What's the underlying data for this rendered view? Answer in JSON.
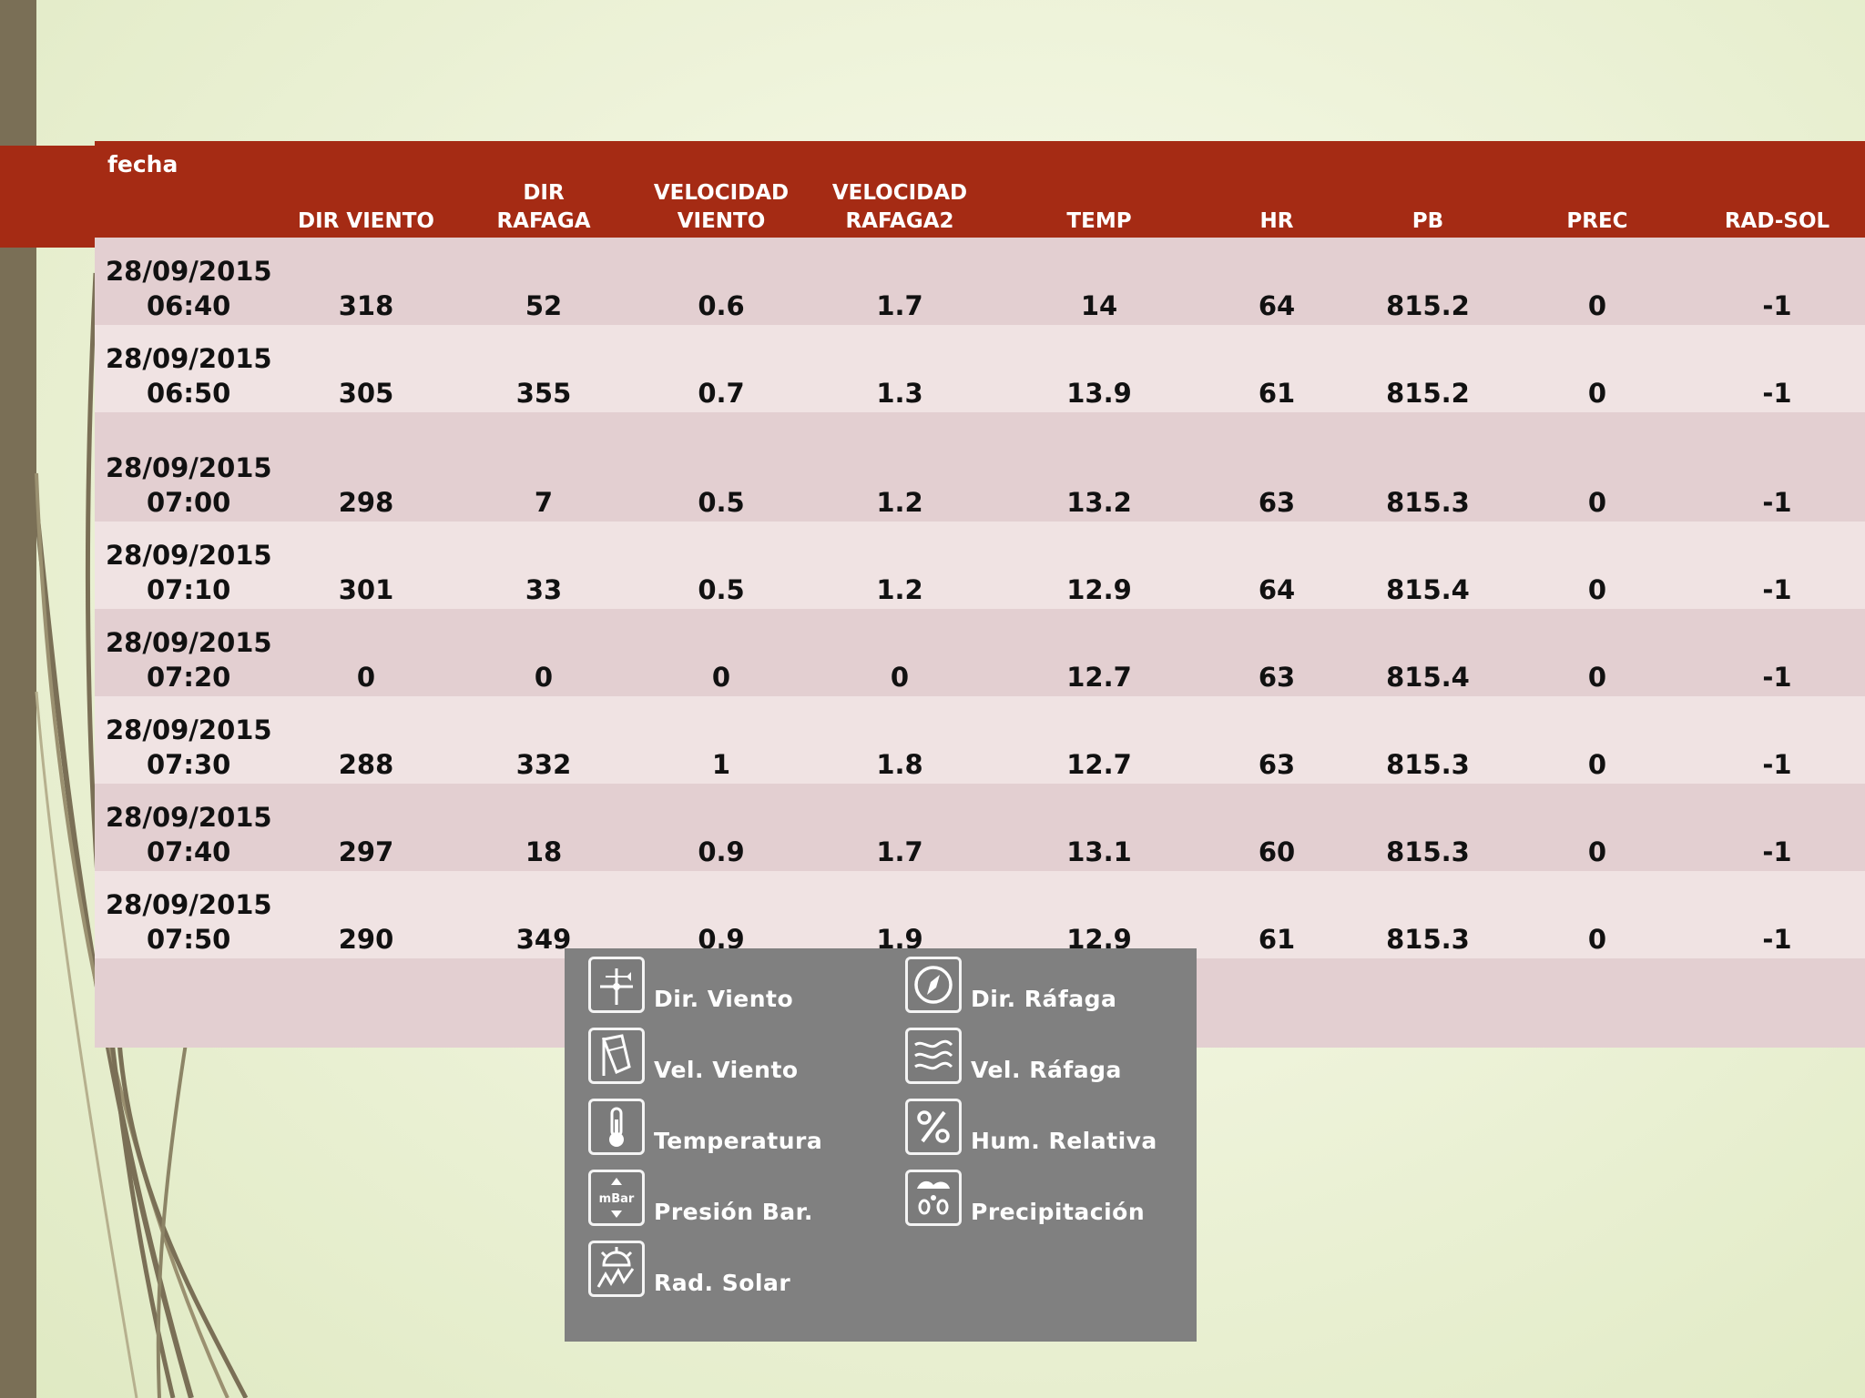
{
  "colors": {
    "header_red": "#a52b14",
    "row_dark": "#e3cfd1",
    "row_light": "#f0e3e3",
    "legend_bg": "#808080",
    "left_bar": "#7a6f56"
  },
  "table": {
    "headers": {
      "fecha": "fecha",
      "dir_viento": "DIR VIENTO",
      "dir_rafaga_1": "DIR",
      "dir_rafaga_2": "RAFAGA",
      "velocidad_viento_1": "VELOCIDAD",
      "velocidad_viento_2": "VIENTO",
      "velocidad_rafaga_1": "VELOCIDAD",
      "velocidad_rafaga_2": "RAFAGA2",
      "temp": "TEMP",
      "hr": "HR",
      "pb": "PB",
      "prec": "PREC",
      "rad_sol": "RAD-SOL"
    },
    "rows": [
      {
        "date": "28/09/2015",
        "time": "06:40",
        "dir_viento": "318",
        "dir_rafaga": "52",
        "vel_viento": "0.6",
        "vel_rafaga": "1.7",
        "temp": "14",
        "hr": "64",
        "pb": "815.2",
        "prec": "0",
        "rad_sol": "-1"
      },
      {
        "date": "28/09/2015",
        "time": "06:50",
        "dir_viento": "305",
        "dir_rafaga": "355",
        "vel_viento": "0.7",
        "vel_rafaga": "1.3",
        "temp": "13.9",
        "hr": "61",
        "pb": "815.2",
        "prec": "0",
        "rad_sol": "-1"
      },
      {
        "date": "28/09/2015",
        "time": "07:00",
        "dir_viento": "298",
        "dir_rafaga": "7",
        "vel_viento": "0.5",
        "vel_rafaga": "1.2",
        "temp": "13.2",
        "hr": "63",
        "pb": "815.3",
        "prec": "0",
        "rad_sol": "-1"
      },
      {
        "date": "28/09/2015",
        "time": "07:10",
        "dir_viento": "301",
        "dir_rafaga": "33",
        "vel_viento": "0.5",
        "vel_rafaga": "1.2",
        "temp": "12.9",
        "hr": "64",
        "pb": "815.4",
        "prec": "0",
        "rad_sol": "-1"
      },
      {
        "date": "28/09/2015",
        "time": "07:20",
        "dir_viento": "0",
        "dir_rafaga": "0",
        "vel_viento": "0",
        "vel_rafaga": "0",
        "temp": "12.7",
        "hr": "63",
        "pb": "815.4",
        "prec": "0",
        "rad_sol": "-1"
      },
      {
        "date": "28/09/2015",
        "time": "07:30",
        "dir_viento": "288",
        "dir_rafaga": "332",
        "vel_viento": "1",
        "vel_rafaga": "1.8",
        "temp": "12.7",
        "hr": "63",
        "pb": "815.3",
        "prec": "0",
        "rad_sol": "-1"
      },
      {
        "date": "28/09/2015",
        "time": "07:40",
        "dir_viento": "297",
        "dir_rafaga": "18",
        "vel_viento": "0.9",
        "vel_rafaga": "1.7",
        "temp": "13.1",
        "hr": "60",
        "pb": "815.3",
        "prec": "0",
        "rad_sol": "-1"
      },
      {
        "date": "28/09/2015",
        "time": "07:50",
        "dir_viento": "290",
        "dir_rafaga": "349",
        "vel_viento": "0.9",
        "vel_rafaga": "1.9",
        "temp": "12.9",
        "hr": "61",
        "pb": "815.3",
        "prec": "0",
        "rad_sol": "-1"
      }
    ]
  },
  "legend": {
    "items": [
      {
        "icon": "wind-vane-icon",
        "label": "Dir. Viento"
      },
      {
        "icon": "compass-icon",
        "label": "Dir. Ráfaga"
      },
      {
        "icon": "windsock-icon",
        "label": "Vel. Viento"
      },
      {
        "icon": "gust-waves-icon",
        "label": "Vel. Ráfaga"
      },
      {
        "icon": "thermometer-icon",
        "label": "Temperatura"
      },
      {
        "icon": "percent-icon",
        "label": "Hum. Relativa"
      },
      {
        "icon": "barometer-icon",
        "label": "Presión Bar.",
        "icon_text": "mBar"
      },
      {
        "icon": "rain-drops-icon",
        "label": "Precipitación"
      },
      {
        "icon": "sun-icon",
        "label": "Rad. Solar"
      }
    ]
  }
}
